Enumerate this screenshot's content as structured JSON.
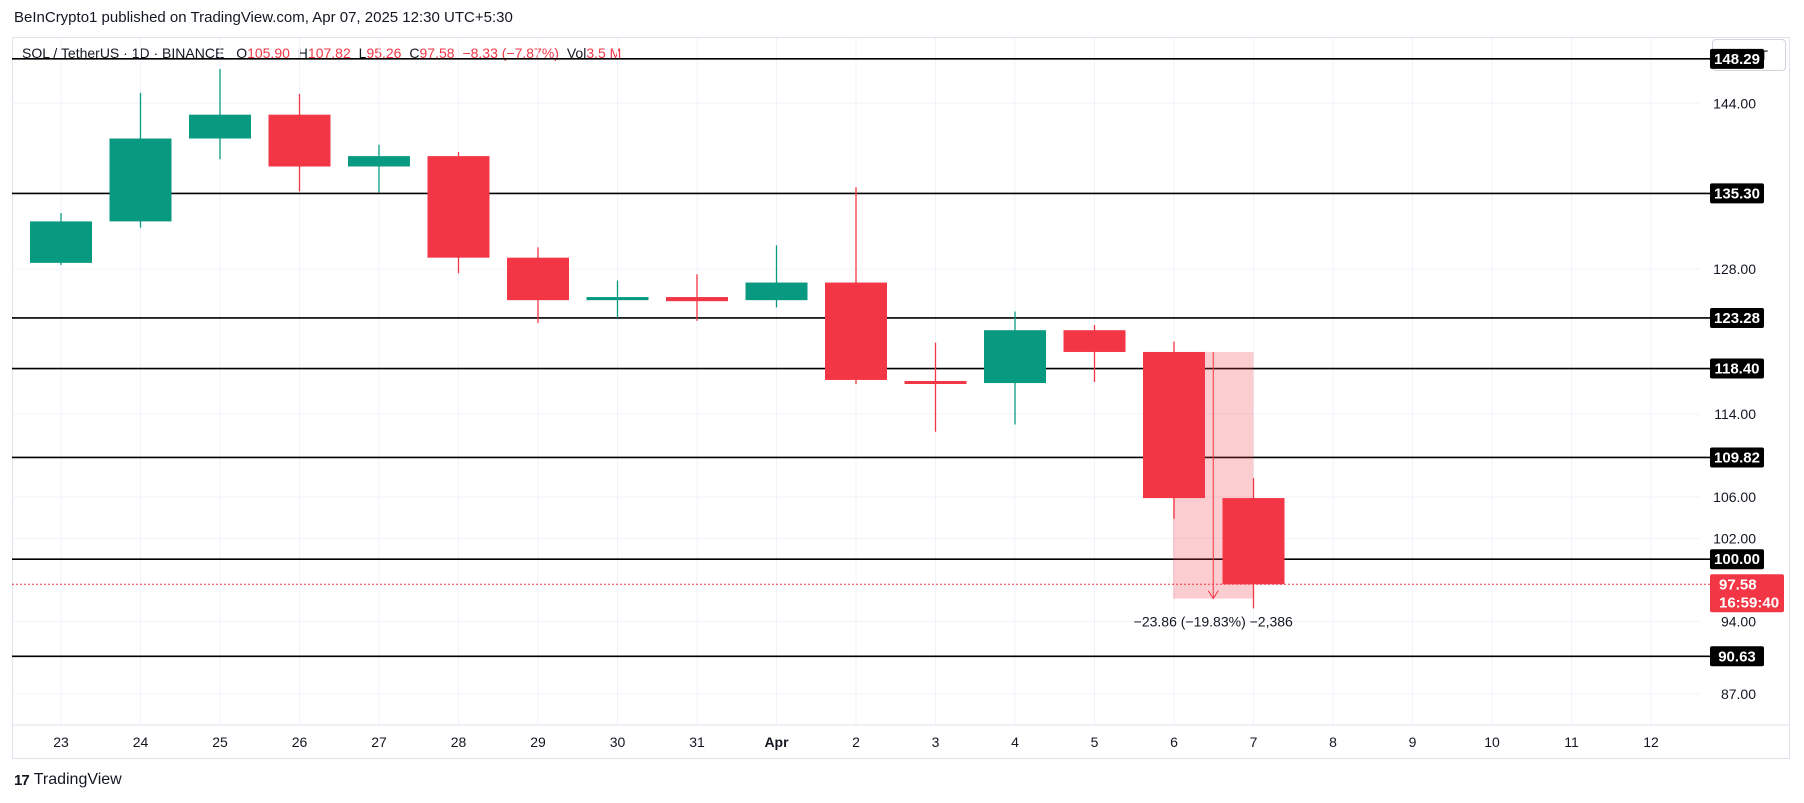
{
  "publisher_line": "BeInCrypto1 published on TradingView.com, Apr 07, 2025 12:30 UTC+5:30",
  "symbol": {
    "name": "SOL / TetherUS · 1D · BINANCE",
    "o_label": "O",
    "o_value": "105.90",
    "h_label": "H",
    "h_value": "107.82",
    "l_label": "L",
    "l_value": "95.26",
    "c_label": "C",
    "c_value": "97.58",
    "change": "−8.33 (−7.87%)",
    "vol_label": "Vol",
    "vol_value": "3.5 M"
  },
  "currency_button": "USDT",
  "footer": {
    "logo_mark": "17",
    "logo_text": "TradingView"
  },
  "colors": {
    "up": "#089981",
    "down": "#f23645",
    "grid": "#f0f3fa",
    "level": "#000000"
  },
  "chart_data": {
    "type": "candlestick",
    "categories": [
      "23",
      "24",
      "25",
      "26",
      "27",
      "28",
      "29",
      "30",
      "31",
      "Apr",
      "2",
      "3",
      "4",
      "5",
      "6",
      "7",
      "8",
      "9",
      "10",
      "11",
      "12"
    ],
    "candles": [
      {
        "x": "23",
        "o": 128.6,
        "h": 133.4,
        "l": 128.4,
        "c": 132.6
      },
      {
        "x": "24",
        "o": 132.6,
        "h": 145.0,
        "l": 132.0,
        "c": 140.6
      },
      {
        "x": "25",
        "o": 140.6,
        "h": 147.3,
        "l": 138.6,
        "c": 142.9
      },
      {
        "x": "26",
        "o": 142.9,
        "h": 144.9,
        "l": 135.5,
        "c": 137.9
      },
      {
        "x": "27",
        "o": 137.9,
        "h": 140.0,
        "l": 135.4,
        "c": 138.9
      },
      {
        "x": "28",
        "o": 138.9,
        "h": 139.3,
        "l": 127.6,
        "c": 129.1
      },
      {
        "x": "29",
        "o": 129.1,
        "h": 130.1,
        "l": 122.8,
        "c": 125.0
      },
      {
        "x": "30",
        "o": 125.0,
        "h": 126.9,
        "l": 123.3,
        "c": 125.3
      },
      {
        "x": "31",
        "o": 125.3,
        "h": 127.5,
        "l": 123.0,
        "c": 124.9
      },
      {
        "x": "Apr",
        "o": 125.0,
        "h": 130.3,
        "l": 124.3,
        "c": 126.7
      },
      {
        "x": "2",
        "o": 126.7,
        "h": 135.9,
        "l": 116.9,
        "c": 117.3
      },
      {
        "x": "3",
        "o": 117.2,
        "h": 120.9,
        "l": 112.3,
        "c": 117.0
      },
      {
        "x": "4",
        "o": 117.0,
        "h": 123.9,
        "l": 113.0,
        "c": 122.1
      },
      {
        "x": "5",
        "o": 122.1,
        "h": 122.6,
        "l": 117.1,
        "c": 120.0
      },
      {
        "x": "6",
        "o": 120.0,
        "h": 121.0,
        "l": 103.9,
        "c": 105.9
      },
      {
        "x": "7",
        "o": 105.9,
        "h": 107.82,
        "l": 95.26,
        "c": 97.58
      }
    ],
    "levels": [
      "148.29",
      "135.30",
      "123.28",
      "118.40",
      "109.82",
      "100.00",
      "90.63"
    ],
    "y_ticks": [
      "144.00",
      "128.00",
      "114.00",
      "106.00",
      "102.00",
      "94.00",
      "87.00"
    ],
    "ylim": [
      84.0,
      150.3
    ],
    "current_price": {
      "value": "97.58",
      "countdown": "16:59:40"
    },
    "measure": {
      "from": 120.0,
      "to": 96.2,
      "label": "−23.86 (−19.83%) −2,386"
    },
    "grid": true
  }
}
